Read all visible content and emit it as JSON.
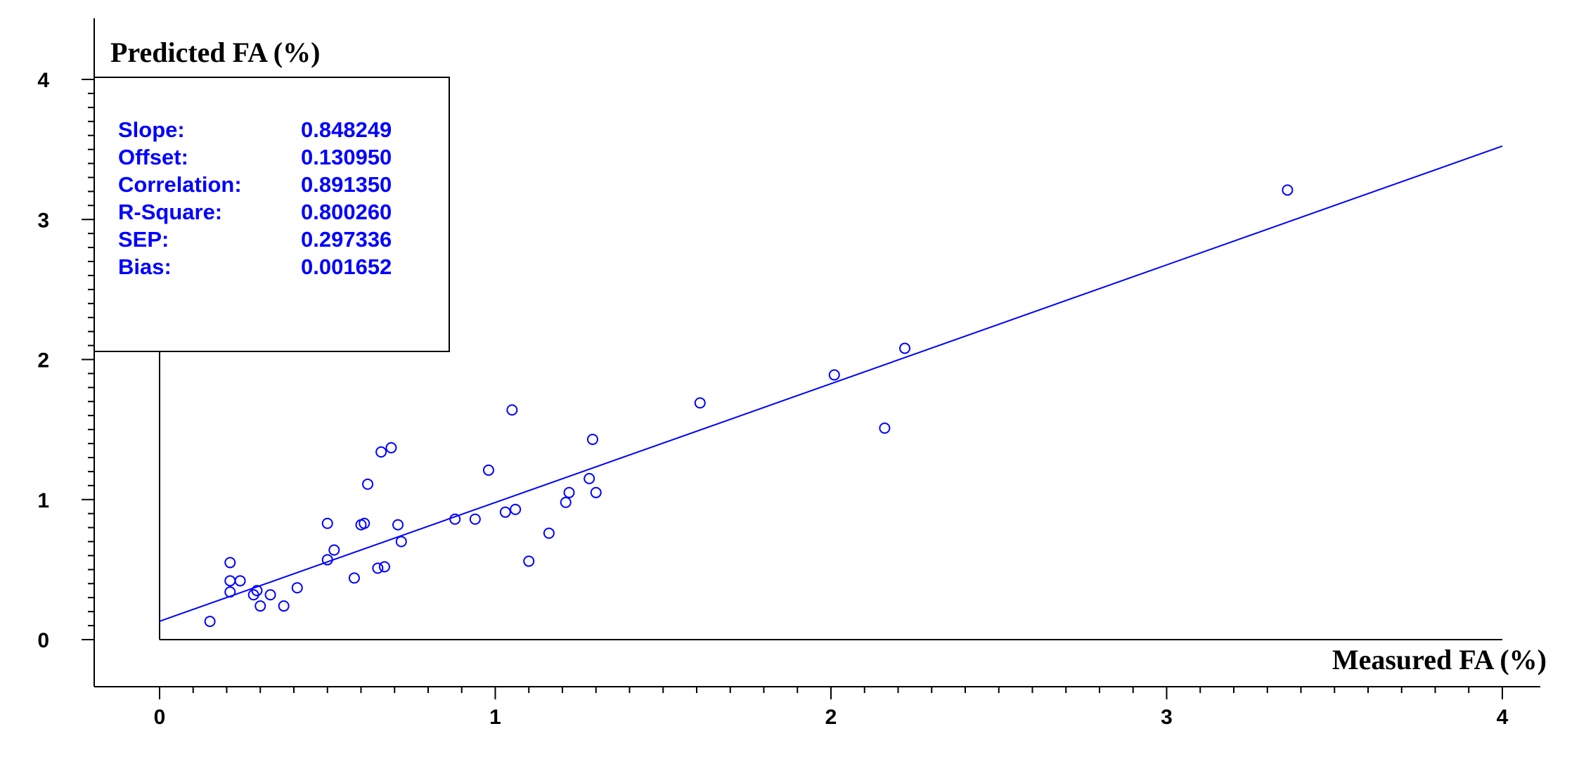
{
  "chart_data": {
    "type": "scatter",
    "title": "",
    "xlabel": "Measured FA (%)",
    "ylabel": "Predicted FA (%)",
    "xlim": [
      0,
      4
    ],
    "ylim": [
      0,
      4
    ],
    "x_ticks": [
      0,
      1,
      2,
      3,
      4
    ],
    "y_ticks": [
      0,
      1,
      2,
      3,
      4
    ],
    "x_tick_labels": [
      "0",
      "1",
      "2",
      "3",
      "4"
    ],
    "y_tick_labels": [
      "0",
      "1",
      "2",
      "3",
      "4"
    ],
    "grid": false,
    "series": [
      {
        "points": [
          {
            "x": 0.15,
            "y": 0.13
          },
          {
            "x": 0.21,
            "y": 0.55
          },
          {
            "x": 0.21,
            "y": 0.42
          },
          {
            "x": 0.21,
            "y": 0.34
          },
          {
            "x": 0.24,
            "y": 0.42
          },
          {
            "x": 0.28,
            "y": 0.32
          },
          {
            "x": 0.29,
            "y": 0.35
          },
          {
            "x": 0.3,
            "y": 0.24
          },
          {
            "x": 0.33,
            "y": 0.32
          },
          {
            "x": 0.37,
            "y": 0.24
          },
          {
            "x": 0.41,
            "y": 0.37
          },
          {
            "x": 0.5,
            "y": 0.83
          },
          {
            "x": 0.5,
            "y": 0.57
          },
          {
            "x": 0.52,
            "y": 0.64
          },
          {
            "x": 0.58,
            "y": 0.44
          },
          {
            "x": 0.6,
            "y": 0.82
          },
          {
            "x": 0.61,
            "y": 0.83
          },
          {
            "x": 0.62,
            "y": 1.11
          },
          {
            "x": 0.65,
            "y": 0.51
          },
          {
            "x": 0.66,
            "y": 1.34
          },
          {
            "x": 0.67,
            "y": 0.52
          },
          {
            "x": 0.69,
            "y": 1.37
          },
          {
            "x": 0.71,
            "y": 0.82
          },
          {
            "x": 0.72,
            "y": 0.7
          },
          {
            "x": 0.88,
            "y": 0.86
          },
          {
            "x": 0.94,
            "y": 0.86
          },
          {
            "x": 0.98,
            "y": 1.21
          },
          {
            "x": 1.03,
            "y": 0.91
          },
          {
            "x": 1.05,
            "y": 1.64
          },
          {
            "x": 1.06,
            "y": 0.93
          },
          {
            "x": 1.1,
            "y": 0.56
          },
          {
            "x": 1.16,
            "y": 0.76
          },
          {
            "x": 1.21,
            "y": 0.98
          },
          {
            "x": 1.22,
            "y": 1.05
          },
          {
            "x": 1.28,
            "y": 1.15
          },
          {
            "x": 1.29,
            "y": 1.43
          },
          {
            "x": 1.3,
            "y": 1.05
          },
          {
            "x": 1.61,
            "y": 1.69
          },
          {
            "x": 2.01,
            "y": 1.89
          },
          {
            "x": 2.16,
            "y": 1.51
          },
          {
            "x": 2.22,
            "y": 2.08
          },
          {
            "x": 3.36,
            "y": 3.21
          }
        ]
      }
    ],
    "fit_line": {
      "slope": 0.848249,
      "offset": 0.13095,
      "x_range": [
        0,
        4
      ]
    },
    "stats": [
      {
        "label": "Slope:",
        "value": "0.848249"
      },
      {
        "label": "Offset:",
        "value": "0.130950"
      },
      {
        "label": "Correlation:",
        "value": "0.891350"
      },
      {
        "label": "R-Square:",
        "value": "0.800260"
      },
      {
        "label": "SEP:",
        "value": "0.297336"
      },
      {
        "label": "Bias:",
        "value": "0.001652"
      }
    ],
    "stats_box_position": "top-left",
    "colors": {
      "data": "#0000ff",
      "axes": "#000000",
      "background": "#ffffff"
    }
  }
}
